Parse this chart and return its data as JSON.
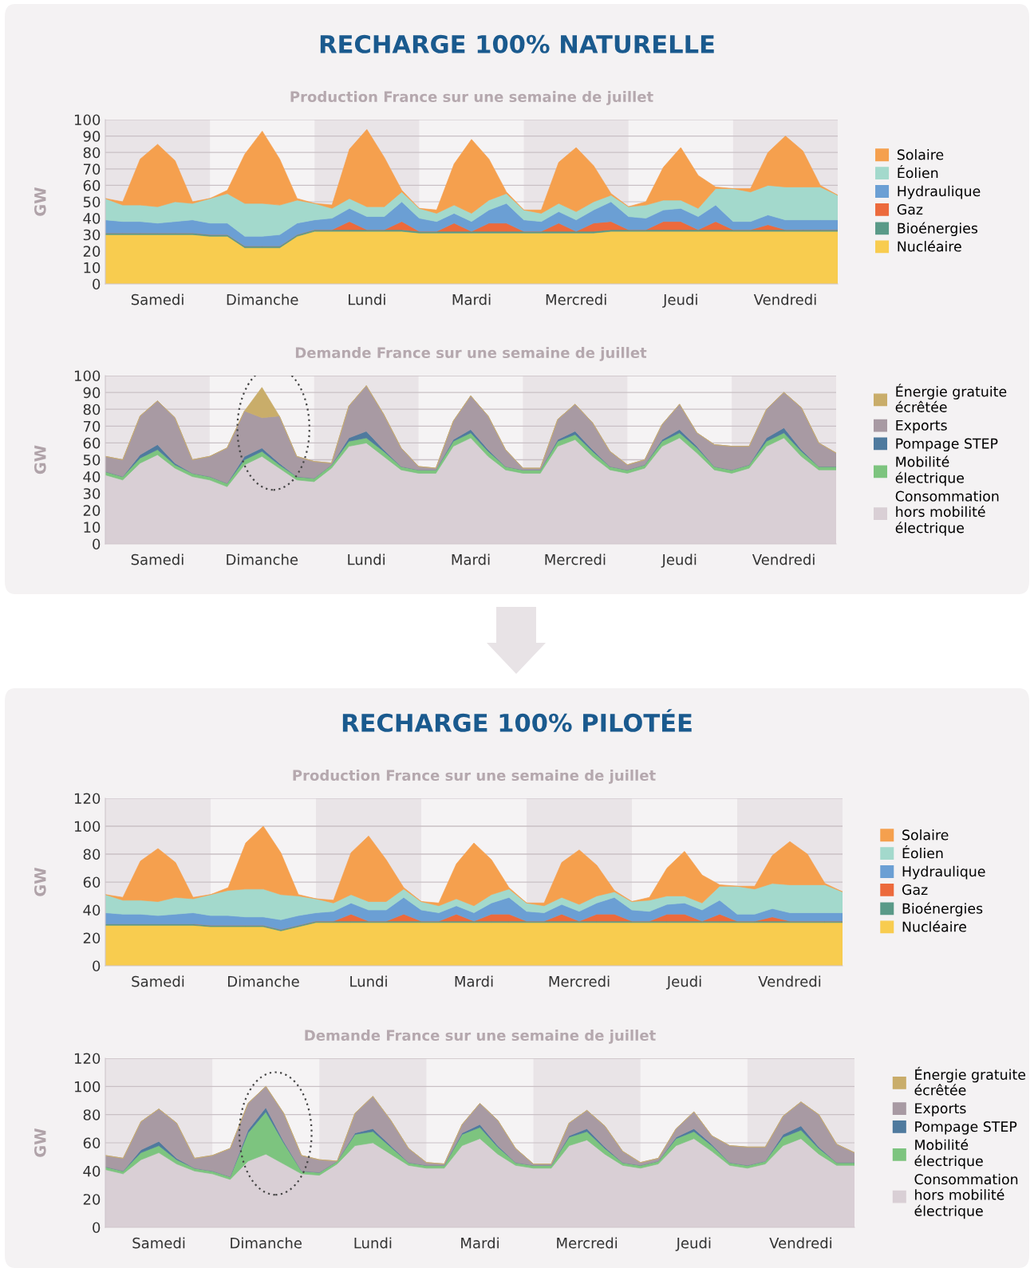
{
  "chart_data": [
    {
      "type": "area",
      "stacked": true,
      "title": "Production France sur une semaine de juillet",
      "ylabel": "GW",
      "annotations": [
        "RECHARGE 100% NATURELLE"
      ],
      "categories": [
        null,
        null,
        null,
        "Samedi",
        null,
        null,
        null,
        null,
        null,
        "Dimanche",
        null,
        null,
        null,
        null,
        null,
        "Lundi",
        null,
        null,
        null,
        null,
        null,
        "Mardi",
        null,
        null,
        null,
        null,
        null,
        "Mercredi",
        null,
        null,
        null,
        null,
        null,
        "Jeudi",
        null,
        null,
        null,
        null,
        null,
        "Vendredi",
        null,
        null,
        null
      ],
      "ylim": [
        0,
        100
      ],
      "yticks": [
        0,
        10,
        20,
        30,
        40,
        50,
        60,
        70,
        80,
        90,
        100
      ],
      "grid": "y",
      "legend": "right",
      "series": [
        {
          "name": "Nucléaire",
          "color": "#f8cc4f",
          "values": [
            30,
            30,
            30,
            30,
            30,
            30,
            29,
            29,
            22,
            22,
            22,
            29,
            32,
            32,
            32,
            32,
            32,
            32,
            31,
            31,
            31,
            31,
            31,
            31,
            31,
            31,
            31,
            31,
            31,
            32,
            32,
            32,
            32,
            32,
            32,
            32,
            32,
            32,
            32,
            32,
            32,
            32,
            32
          ]
        },
        {
          "name": "Bioénergies",
          "color": "#5a9a88",
          "values": [
            1,
            1,
            1,
            1,
            1,
            1,
            1,
            1,
            1,
            1,
            1,
            1,
            1,
            1,
            1,
            1,
            1,
            1,
            1,
            1,
            1,
            1,
            1,
            1,
            1,
            1,
            1,
            1,
            1,
            1,
            1,
            1,
            1,
            1,
            1,
            1,
            1,
            1,
            1,
            1,
            1,
            1,
            1
          ]
        },
        {
          "name": "Gaz",
          "color": "#ec6a3c",
          "values": [
            0,
            0,
            0,
            0,
            0,
            0,
            0,
            0,
            0,
            0,
            0,
            0,
            0,
            0,
            5,
            0,
            0,
            5,
            0,
            0,
            5,
            0,
            5,
            5,
            0,
            0,
            5,
            0,
            5,
            5,
            0,
            0,
            5,
            5,
            0,
            5,
            0,
            0,
            3,
            0,
            0,
            0,
            0
          ]
        },
        {
          "name": "Hydraulique",
          "color": "#6b9fd4",
          "values": [
            8,
            7,
            7,
            6,
            7,
            8,
            7,
            7,
            6,
            6,
            7,
            7,
            6,
            7,
            8,
            8,
            8,
            12,
            8,
            6,
            6,
            6,
            8,
            12,
            7,
            6,
            7,
            7,
            8,
            12,
            8,
            7,
            7,
            8,
            8,
            10,
            5,
            5,
            6,
            6,
            6,
            6,
            6
          ]
        },
        {
          "name": "Éolien",
          "color": "#a3d9cc",
          "values": [
            13,
            10,
            10,
            10,
            12,
            10,
            15,
            18,
            20,
            20,
            18,
            14,
            10,
            6,
            6,
            6,
            6,
            6,
            6,
            5,
            5,
            5,
            6,
            6,
            6,
            5,
            5,
            5,
            5,
            4,
            6,
            8,
            6,
            5,
            5,
            10,
            20,
            18,
            18,
            20,
            20,
            20,
            15
          ]
        },
        {
          "name": "Solaire",
          "color": "#f5a04e",
          "values": [
            0,
            2,
            28,
            38,
            25,
            1,
            0,
            2,
            30,
            44,
            28,
            1,
            0,
            2,
            30,
            47,
            30,
            1,
            0,
            2,
            25,
            45,
            25,
            1,
            0,
            2,
            25,
            39,
            22,
            1,
            0,
            2,
            20,
            32,
            20,
            1,
            0,
            2,
            20,
            31,
            22,
            1,
            0
          ]
        }
      ]
    },
    {
      "type": "area",
      "stacked": true,
      "title": "Demande France sur une semaine de juillet",
      "ylabel": "GW",
      "categories": [
        null,
        null,
        null,
        "Samedi",
        null,
        null,
        null,
        null,
        null,
        "Dimanche",
        null,
        null,
        null,
        null,
        null,
        "Lundi",
        null,
        null,
        null,
        null,
        null,
        "Mardi",
        null,
        null,
        null,
        null,
        null,
        "Mercredi",
        null,
        null,
        null,
        null,
        null,
        "Jeudi",
        null,
        null,
        null,
        null,
        null,
        "Vendredi",
        null,
        null,
        null
      ],
      "ylim": [
        0,
        100
      ],
      "yticks": [
        0,
        10,
        20,
        30,
        40,
        50,
        60,
        70,
        80,
        90,
        100
      ],
      "grid": "y",
      "legend": "right",
      "series": [
        {
          "name": "Consommation\nhors mobilité\nélectrique",
          "color": "#d9cfd5",
          "values": [
            41,
            38,
            48,
            53,
            45,
            40,
            38,
            34,
            47,
            52,
            45,
            38,
            37,
            45,
            58,
            60,
            52,
            44,
            42,
            42,
            58,
            63,
            52,
            44,
            42,
            42,
            58,
            62,
            52,
            44,
            42,
            45,
            58,
            63,
            54,
            44,
            42,
            45,
            58,
            63,
            52,
            44,
            44
          ]
        },
        {
          "name": "Mobilité\nélectrique",
          "color": "#7dc47f",
          "values": [
            2,
            2,
            3,
            3,
            2,
            2,
            2,
            2,
            3,
            3,
            2,
            2,
            2,
            2,
            3,
            3,
            3,
            2,
            2,
            2,
            3,
            3,
            3,
            2,
            2,
            2,
            3,
            3,
            3,
            2,
            2,
            2,
            3,
            3,
            3,
            2,
            2,
            2,
            3,
            3,
            3,
            2,
            2
          ]
        },
        {
          "name": "Pompage STEP",
          "color": "#4f7a9e",
          "values": [
            0,
            0,
            2,
            3,
            1,
            0,
            0,
            0,
            2,
            2,
            1,
            0,
            0,
            0,
            2,
            4,
            1,
            0,
            0,
            0,
            1,
            2,
            1,
            0,
            0,
            0,
            1,
            2,
            1,
            0,
            0,
            0,
            1,
            2,
            1,
            0,
            0,
            0,
            2,
            3,
            1,
            0,
            0
          ]
        },
        {
          "name": "Exports",
          "color": "#a89aa3",
          "values": [
            9,
            10,
            23,
            26,
            27,
            8,
            12,
            21,
            27,
            18,
            28,
            12,
            10,
            1,
            19,
            27,
            21,
            11,
            2,
            1,
            11,
            20,
            20,
            10,
            1,
            1,
            12,
            16,
            16,
            9,
            3,
            3,
            9,
            15,
            8,
            13,
            14,
            11,
            17,
            21,
            25,
            14,
            8
          ]
        },
        {
          "name": "Énergie gratuite\nécrêtée",
          "color": "#c9ad6a",
          "values": [
            0,
            0,
            0,
            0,
            0,
            0,
            0,
            0,
            0,
            18,
            0,
            0,
            0,
            0,
            0,
            0,
            0,
            0,
            0,
            0,
            0,
            0,
            0,
            0,
            0,
            0,
            0,
            0,
            0,
            0,
            0,
            0,
            0,
            0,
            0,
            0,
            0,
            0,
            0,
            0,
            0,
            0,
            0
          ]
        }
      ]
    },
    {
      "type": "area",
      "stacked": true,
      "title": "Production France sur une semaine de juillet",
      "ylabel": "GW",
      "annotations": [
        "RECHARGE 100% PILOTÉE"
      ],
      "categories": [
        null,
        null,
        null,
        "Samedi",
        null,
        null,
        null,
        null,
        null,
        "Dimanche",
        null,
        null,
        null,
        null,
        null,
        "Lundi",
        null,
        null,
        null,
        null,
        null,
        "Mardi",
        null,
        null,
        null,
        null,
        null,
        "Mercredi",
        null,
        null,
        null,
        null,
        null,
        "Jeudi",
        null,
        null,
        null,
        null,
        null,
        "Vendredi",
        null,
        null,
        null
      ],
      "ylim": [
        0,
        120
      ],
      "yticks": [
        0,
        20,
        40,
        60,
        80,
        100,
        120
      ],
      "grid": "y",
      "legend": "right",
      "series": [
        {
          "name": "Nucléaire",
          "color": "#f8cc4f",
          "values": [
            29,
            29,
            29,
            29,
            29,
            29,
            28,
            28,
            28,
            28,
            25,
            28,
            31,
            31,
            31,
            31,
            31,
            31,
            31,
            31,
            31,
            31,
            31,
            31,
            31,
            31,
            31,
            31,
            31,
            31,
            31,
            31,
            31,
            31,
            31,
            31,
            31,
            31,
            31,
            31,
            31,
            31,
            31
          ]
        },
        {
          "name": "Bioénergies",
          "color": "#5a9a88",
          "values": [
            1,
            1,
            1,
            1,
            1,
            1,
            1,
            1,
            1,
            1,
            1,
            1,
            1,
            1,
            1,
            1,
            1,
            1,
            1,
            1,
            1,
            1,
            1,
            1,
            1,
            1,
            1,
            1,
            1,
            1,
            1,
            1,
            1,
            1,
            1,
            1,
            1,
            1,
            1,
            1,
            1,
            1,
            1
          ]
        },
        {
          "name": "Gaz",
          "color": "#ec6a3c",
          "values": [
            0,
            0,
            0,
            0,
            0,
            0,
            0,
            0,
            0,
            0,
            0,
            0,
            0,
            0,
            5,
            0,
            0,
            5,
            0,
            0,
            5,
            0,
            5,
            5,
            0,
            0,
            5,
            0,
            5,
            5,
            0,
            0,
            5,
            5,
            0,
            5,
            0,
            0,
            3,
            0,
            0,
            0,
            0
          ]
        },
        {
          "name": "Hydraulique",
          "color": "#6b9fd4",
          "values": [
            8,
            7,
            7,
            6,
            7,
            8,
            7,
            7,
            6,
            6,
            7,
            7,
            6,
            7,
            8,
            8,
            8,
            12,
            8,
            6,
            6,
            6,
            8,
            12,
            7,
            6,
            7,
            7,
            8,
            12,
            8,
            7,
            7,
            8,
            8,
            10,
            5,
            5,
            6,
            6,
            6,
            6,
            6
          ]
        },
        {
          "name": "Éolien",
          "color": "#a3d9cc",
          "values": [
            13,
            10,
            10,
            10,
            12,
            10,
            15,
            18,
            20,
            20,
            18,
            14,
            10,
            6,
            6,
            6,
            6,
            6,
            6,
            5,
            5,
            5,
            6,
            6,
            6,
            5,
            5,
            5,
            5,
            4,
            6,
            8,
            6,
            5,
            5,
            10,
            20,
            18,
            18,
            20,
            20,
            20,
            15
          ]
        },
        {
          "name": "Solaire",
          "color": "#f5a04e",
          "values": [
            0,
            2,
            28,
            38,
            25,
            1,
            0,
            2,
            33,
            45,
            30,
            1,
            0,
            2,
            30,
            47,
            30,
            1,
            0,
            2,
            25,
            45,
            25,
            1,
            0,
            2,
            25,
            39,
            22,
            1,
            0,
            2,
            20,
            32,
            20,
            1,
            0,
            2,
            20,
            31,
            22,
            1,
            0
          ]
        }
      ]
    },
    {
      "type": "area",
      "stacked": true,
      "title": "Demande France sur une semaine de juillet",
      "ylabel": "GW",
      "categories": [
        null,
        null,
        null,
        "Samedi",
        null,
        null,
        null,
        null,
        null,
        "Dimanche",
        null,
        null,
        null,
        null,
        null,
        "Lundi",
        null,
        null,
        null,
        null,
        null,
        "Mardi",
        null,
        null,
        null,
        null,
        null,
        "Mercredi",
        null,
        null,
        null,
        null,
        null,
        "Jeudi",
        null,
        null,
        null,
        null,
        null,
        "Vendredi",
        null,
        null,
        null
      ],
      "ylim": [
        0,
        120
      ],
      "yticks": [
        0,
        20,
        40,
        60,
        80,
        100,
        120
      ],
      "grid": "y",
      "legend": "right",
      "series": [
        {
          "name": "Consommation\nhors mobilité\nélectrique",
          "color": "#d9cfd5",
          "values": [
            41,
            38,
            48,
            53,
            45,
            40,
            38,
            34,
            47,
            52,
            45,
            38,
            37,
            45,
            58,
            60,
            52,
            44,
            42,
            42,
            58,
            63,
            52,
            44,
            42,
            42,
            58,
            62,
            52,
            44,
            42,
            45,
            58,
            63,
            54,
            44,
            42,
            45,
            58,
            63,
            52,
            44,
            44
          ]
        },
        {
          "name": "Mobilité\nélectrique",
          "color": "#7dc47f",
          "values": [
            2,
            2,
            5,
            5,
            3,
            2,
            2,
            2,
            20,
            30,
            15,
            2,
            2,
            2,
            8,
            8,
            5,
            2,
            2,
            2,
            8,
            8,
            5,
            2,
            2,
            2,
            6,
            6,
            4,
            2,
            2,
            2,
            5,
            5,
            4,
            2,
            2,
            2,
            6,
            6,
            4,
            2,
            2
          ]
        },
        {
          "name": "Pompage STEP",
          "color": "#4f7a9e",
          "values": [
            0,
            0,
            2,
            3,
            1,
            0,
            0,
            0,
            2,
            3,
            1,
            0,
            0,
            0,
            1,
            2,
            1,
            0,
            0,
            0,
            1,
            2,
            1,
            0,
            0,
            0,
            1,
            2,
            1,
            0,
            0,
            0,
            1,
            2,
            1,
            0,
            0,
            0,
            2,
            3,
            1,
            0,
            0
          ]
        },
        {
          "name": "Exports",
          "color": "#a89aa3",
          "values": [
            8,
            9,
            20,
            23,
            25,
            7,
            11,
            20,
            19,
            15,
            20,
            11,
            9,
            0,
            14,
            23,
            18,
            10,
            2,
            1,
            6,
            15,
            18,
            10,
            1,
            1,
            9,
            13,
            15,
            8,
            2,
            2,
            6,
            12,
            6,
            12,
            13,
            10,
            13,
            17,
            23,
            13,
            7
          ]
        },
        {
          "name": "Énergie gratuite\nécrêtée",
          "color": "#c9ad6a",
          "values": [
            null,
            null,
            null,
            null,
            null,
            null,
            null,
            null,
            null,
            null,
            null,
            null,
            null,
            null,
            null,
            null,
            null,
            null,
            null,
            null,
            null,
            null,
            null,
            null,
            null,
            null,
            null,
            null,
            null,
            null,
            null,
            null,
            null,
            null,
            null,
            null,
            null,
            null,
            null,
            null,
            null,
            null,
            null
          ]
        }
      ]
    }
  ]
}
